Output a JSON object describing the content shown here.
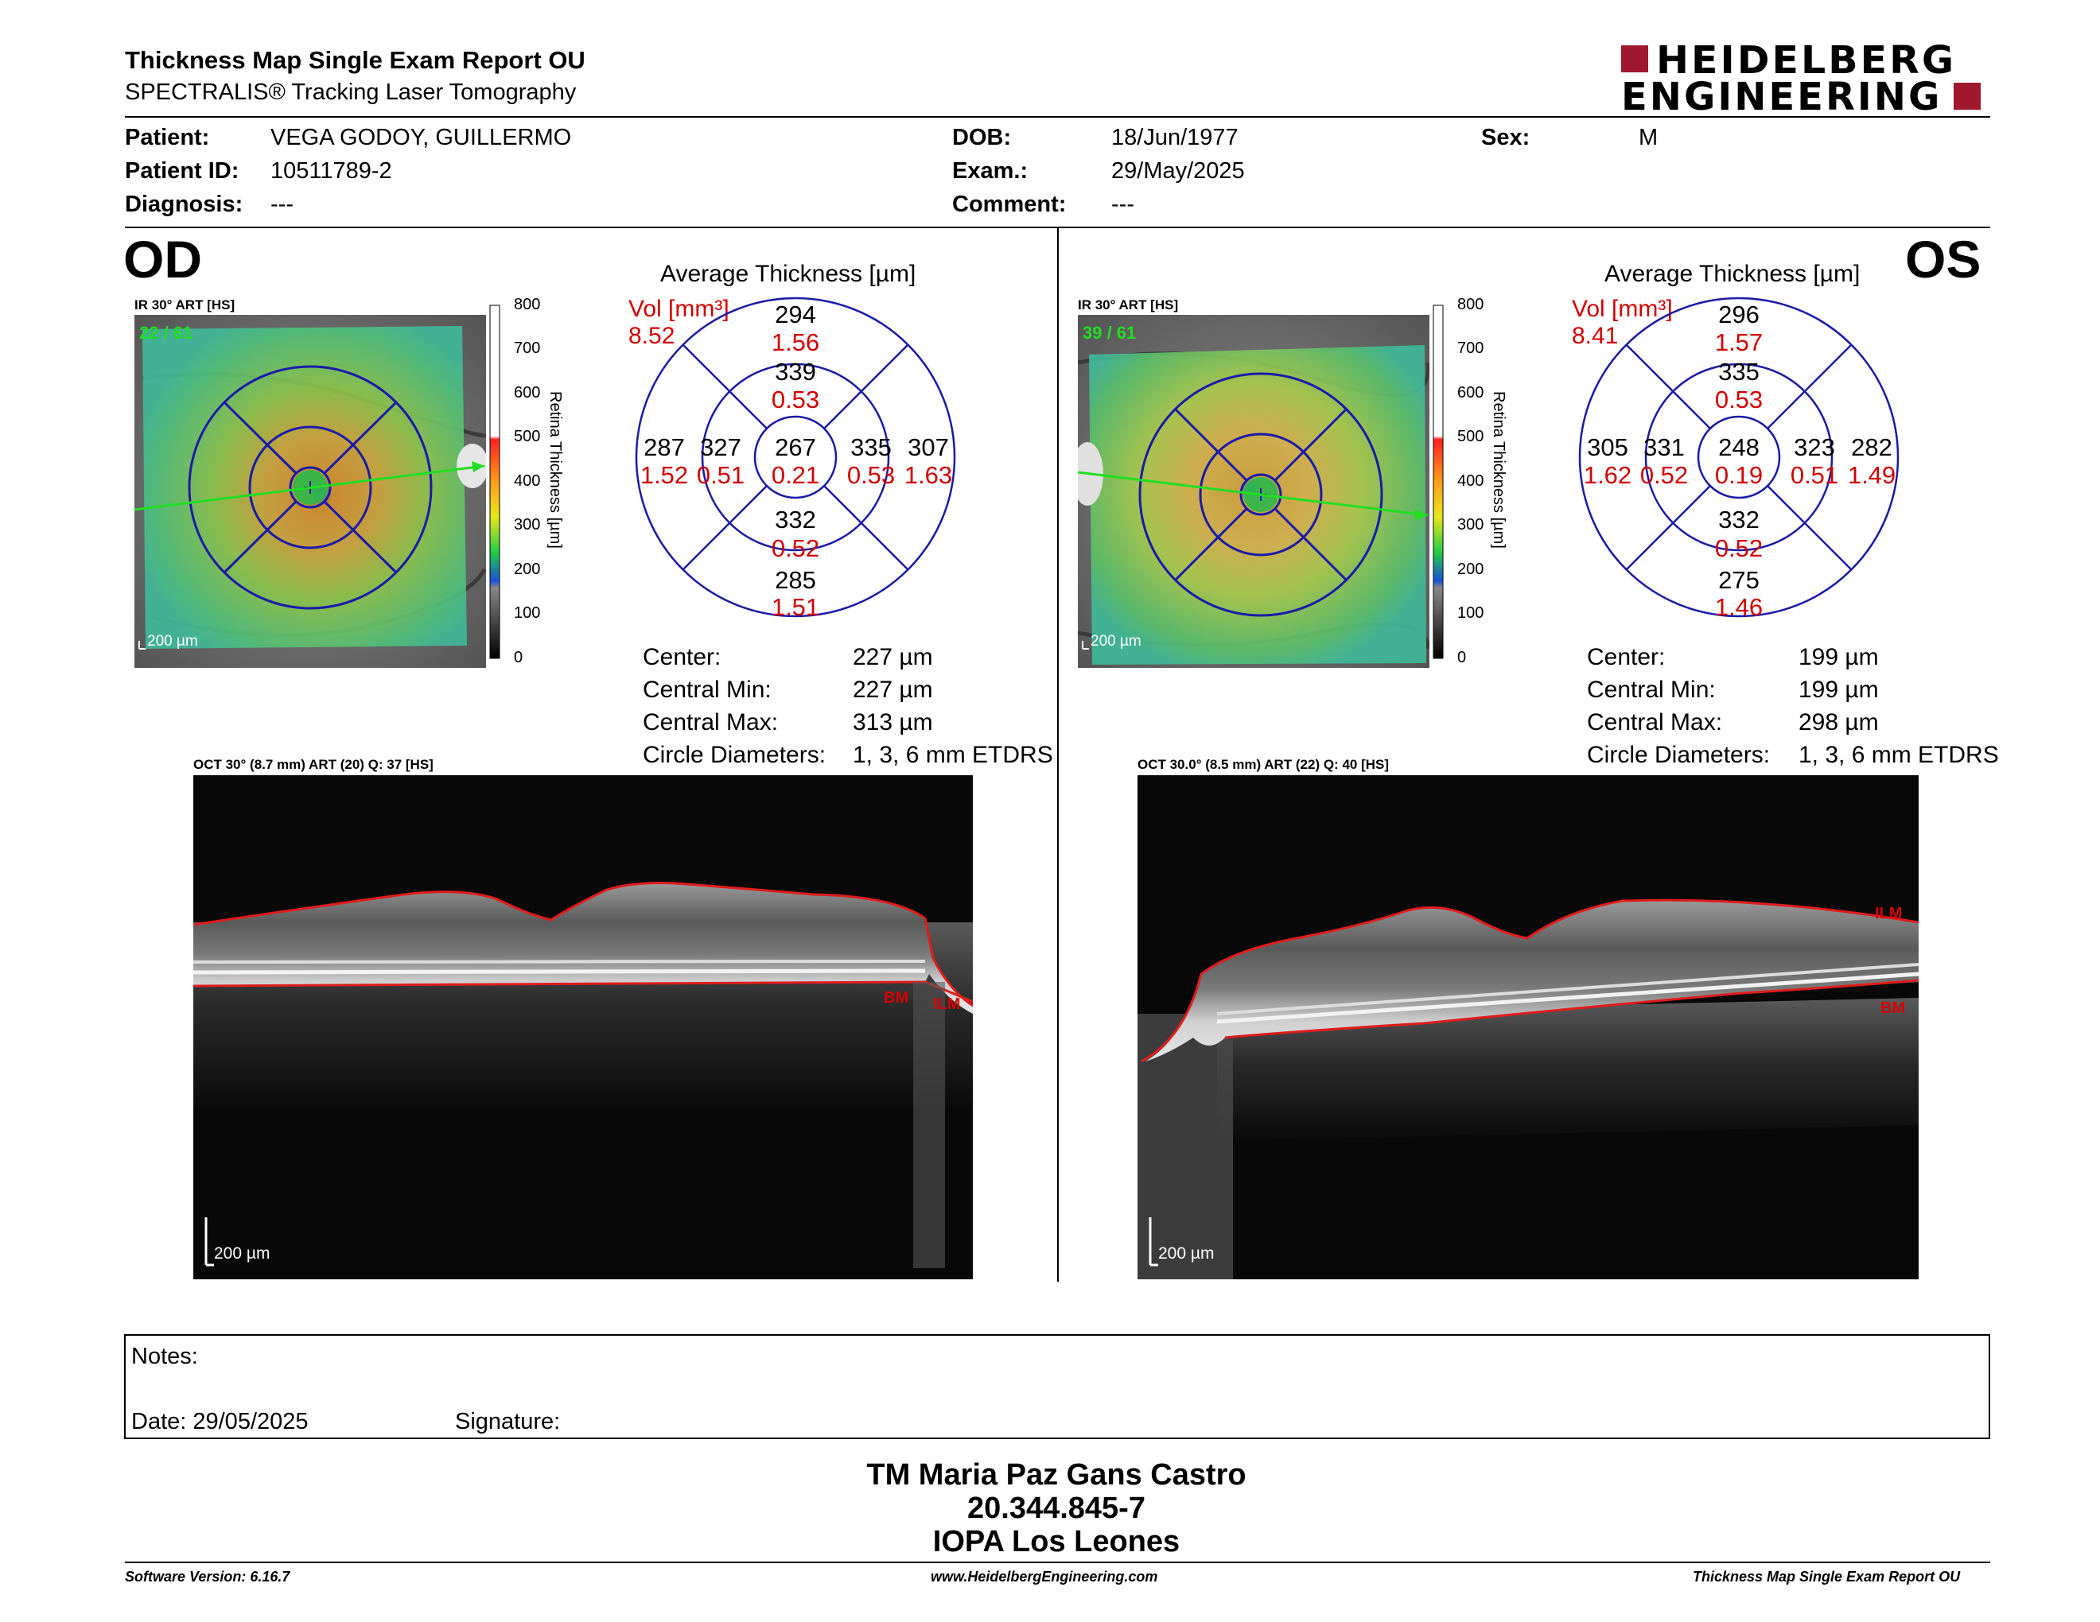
{
  "header": {
    "title": "Thickness Map Single Exam Report OU",
    "subtitle": "SPECTRALIS® Tracking Laser Tomography",
    "logo_line1": "HEIDELBERG",
    "logo_line2": "ENGINEERING"
  },
  "patient": {
    "patient_label": "Patient:",
    "patient_value": "VEGA GODOY, GUILLERMO",
    "id_label": "Patient ID:",
    "id_value": "10511789-2",
    "diagnosis_label": "Diagnosis:",
    "diagnosis_value": "---",
    "dob_label": "DOB:",
    "dob_value": "18/Jun/1977",
    "exam_label": "Exam.:",
    "exam_value": "29/May/2025",
    "comment_label": "Comment:",
    "comment_value": "---",
    "sex_label": "Sex:",
    "sex_value": "M"
  },
  "od": {
    "eye": "OD",
    "ir_label": "IR 30° ART [HS]",
    "ir_count": "22 / 61",
    "ir_scale": "200 µm",
    "colorbar_ticks": [
      "800",
      "700",
      "600",
      "500",
      "400",
      "300",
      "200",
      "100",
      "0"
    ],
    "colorbar_title": "Retina Thickness [µm]",
    "avg_title": "Average Thickness [µm]",
    "vol_label": "Vol [mm³]",
    "vol_value": "8.52",
    "sectors": {
      "outer_top": [
        "294",
        "1.56"
      ],
      "inner_top": [
        "339",
        "0.53"
      ],
      "outer_left": [
        "287",
        "1.52"
      ],
      "inner_left": [
        "327",
        "0.51"
      ],
      "center": [
        "267",
        "0.21"
      ],
      "inner_right": [
        "335",
        "0.53"
      ],
      "outer_right": [
        "307",
        "1.63"
      ],
      "inner_bottom": [
        "332",
        "0.52"
      ],
      "outer_bottom": [
        "285",
        "1.51"
      ]
    },
    "center_label": "Center:",
    "center_value": "227 µm",
    "cmin_label": "Central Min:",
    "cmin_value": "227 µm",
    "cmax_label": "Central Max:",
    "cmax_value": "313 µm",
    "diam_label": "Circle Diameters:",
    "diam_value": "1, 3, 6 mm ETDRS",
    "oct_label": "OCT 30° (8.7 mm) ART (20) Q: 37 [HS]",
    "oct_scale": "200 µm",
    "bm_label": "BM",
    "ilm_label": "ILM"
  },
  "os": {
    "eye": "OS",
    "ir_label": "IR 30° ART [HS]",
    "ir_count": "39 / 61",
    "ir_scale": "200 µm",
    "colorbar_ticks": [
      "800",
      "700",
      "600",
      "500",
      "400",
      "300",
      "200",
      "100",
      "0"
    ],
    "colorbar_title": "Retina Thickness [µm]",
    "avg_title": "Average Thickness [µm]",
    "vol_label": "Vol [mm³]",
    "vol_value": "8.41",
    "sectors": {
      "outer_top": [
        "296",
        "1.57"
      ],
      "inner_top": [
        "335",
        "0.53"
      ],
      "outer_left": [
        "305",
        "1.62"
      ],
      "inner_left": [
        "331",
        "0.52"
      ],
      "center": [
        "248",
        "0.19"
      ],
      "inner_right": [
        "323",
        "0.51"
      ],
      "outer_right": [
        "282",
        "1.49"
      ],
      "inner_bottom": [
        "332",
        "0.52"
      ],
      "outer_bottom": [
        "275",
        "1.46"
      ]
    },
    "center_label": "Center:",
    "center_value": "199 µm",
    "cmin_label": "Central Min:",
    "cmin_value": "199 µm",
    "cmax_label": "Central Max:",
    "cmax_value": "298 µm",
    "diam_label": "Circle Diameters:",
    "diam_value": "1, 3, 6 mm ETDRS",
    "oct_label": "OCT 30.0° (8.5 mm) ART (22) Q: 40 [HS]",
    "oct_scale": "200 µm",
    "bm_label": "BM",
    "ilm_label": "ILM"
  },
  "notes": {
    "notes_label": "Notes:",
    "date_label": "Date: 29/05/2025",
    "signature_label": "Signature:"
  },
  "signoff": {
    "line1": "TM Maria Paz Gans Castro",
    "line2": "20.344.845-7",
    "line3": "IOPA Los Leones"
  },
  "footer": {
    "left": "Software Version: 6.16.7",
    "center": "www.HeidelbergEngineering.com",
    "right": "Thickness Map Single Exam Report OU"
  },
  "colors": {
    "accent_red": "#d40000",
    "logo_red": "#a0182e",
    "grid_blue": "#1a1aa8",
    "scan_green": "#22dd22"
  }
}
